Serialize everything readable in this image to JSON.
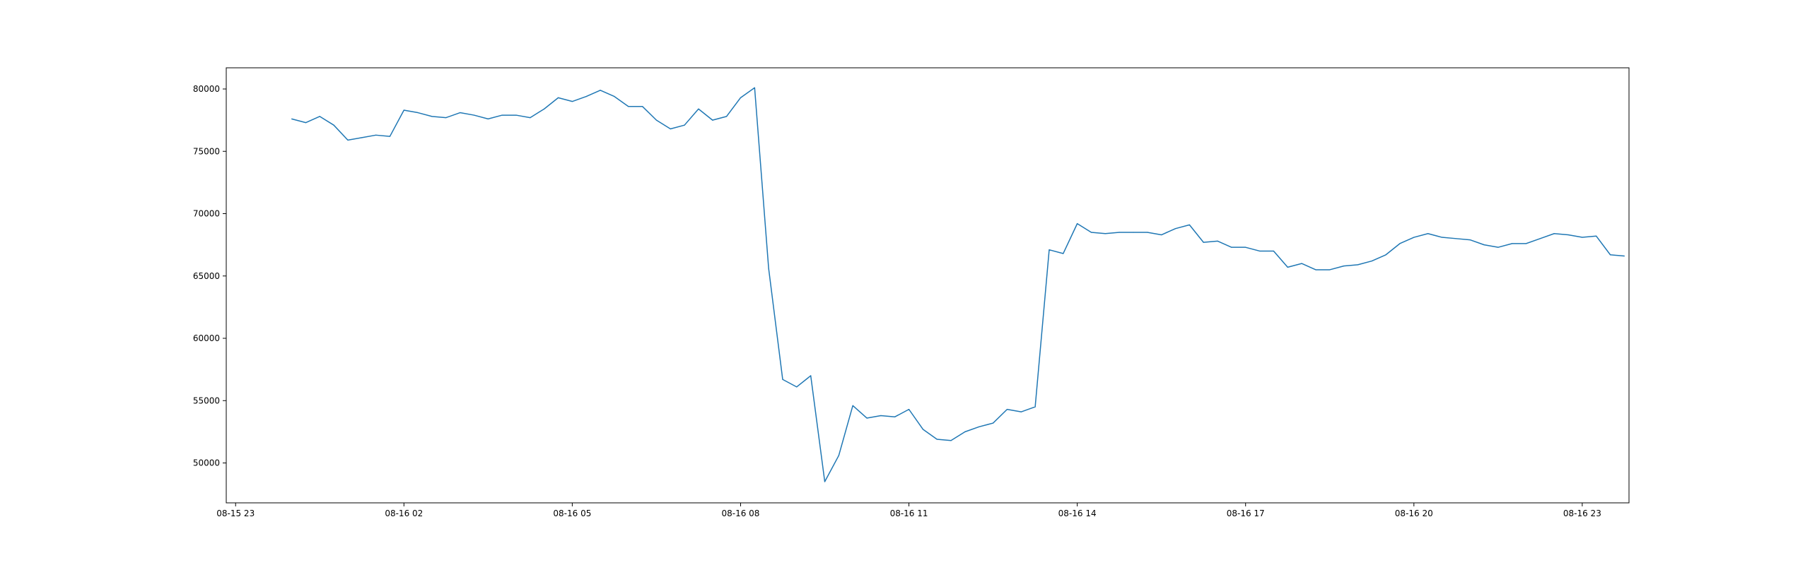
{
  "chart_data": {
    "type": "line",
    "title": "",
    "xlabel": "",
    "ylabel": "",
    "x_ticks": [
      "08-15 23",
      "08-16 02",
      "08-16 05",
      "08-16 08",
      "08-16 11",
      "08-16 14",
      "08-16 17",
      "08-16 20",
      "08-16 23"
    ],
    "y_ticks": [
      50000,
      55000,
      60000,
      65000,
      70000,
      75000,
      80000
    ],
    "xlim": [
      "08-15 22:50",
      "08-16 23:50"
    ],
    "ylim": [
      46800,
      81700
    ],
    "grid": false,
    "series": [
      {
        "color": "#1f77b4",
        "x": [
          "08-16 00:00",
          "08-16 00:15",
          "08-16 00:30",
          "08-16 00:45",
          "08-16 01:00",
          "08-16 01:15",
          "08-16 01:30",
          "08-16 01:45",
          "08-16 02:00",
          "08-16 02:15",
          "08-16 02:30",
          "08-16 02:45",
          "08-16 03:00",
          "08-16 03:15",
          "08-16 03:30",
          "08-16 03:45",
          "08-16 04:00",
          "08-16 04:15",
          "08-16 04:30",
          "08-16 04:45",
          "08-16 05:00",
          "08-16 05:15",
          "08-16 05:30",
          "08-16 05:45",
          "08-16 06:00",
          "08-16 06:15",
          "08-16 06:30",
          "08-16 06:45",
          "08-16 07:00",
          "08-16 07:15",
          "08-16 07:30",
          "08-16 07:45",
          "08-16 08:00",
          "08-16 08:15",
          "08-16 08:30",
          "08-16 08:45",
          "08-16 09:00",
          "08-16 09:15",
          "08-16 09:30",
          "08-16 09:45",
          "08-16 10:00",
          "08-16 10:15",
          "08-16 10:30",
          "08-16 10:45",
          "08-16 11:00",
          "08-16 11:15",
          "08-16 11:30",
          "08-16 11:45",
          "08-16 12:00",
          "08-16 12:15",
          "08-16 12:30",
          "08-16 12:45",
          "08-16 13:00",
          "08-16 13:15",
          "08-16 13:30",
          "08-16 13:45",
          "08-16 14:00",
          "08-16 14:15",
          "08-16 14:30",
          "08-16 14:45",
          "08-16 15:00",
          "08-16 15:15",
          "08-16 15:30",
          "08-16 15:45",
          "08-16 16:00",
          "08-16 16:15",
          "08-16 16:30",
          "08-16 16:45",
          "08-16 17:00",
          "08-16 17:15",
          "08-16 17:30",
          "08-16 17:45",
          "08-16 18:00",
          "08-16 18:15",
          "08-16 18:30",
          "08-16 18:45",
          "08-16 19:00",
          "08-16 19:15",
          "08-16 19:30",
          "08-16 19:45",
          "08-16 20:00",
          "08-16 20:15",
          "08-16 20:30",
          "08-16 20:45",
          "08-16 21:00",
          "08-16 21:15",
          "08-16 21:30",
          "08-16 21:45",
          "08-16 22:00",
          "08-16 22:15",
          "08-16 22:30",
          "08-16 22:45",
          "08-16 23:00",
          "08-16 23:15",
          "08-16 23:30",
          "08-16 23:45"
        ],
        "values": [
          77600,
          77300,
          77800,
          77100,
          75900,
          76100,
          76300,
          76200,
          78300,
          78100,
          77800,
          77700,
          78100,
          77900,
          77600,
          77900,
          77900,
          77700,
          78400,
          79300,
          79000,
          79400,
          79900,
          79400,
          78600,
          78600,
          77500,
          76800,
          77100,
          78400,
          77500,
          77800,
          79300,
          80100,
          65600,
          56700,
          56100,
          57000,
          48500,
          50600,
          54600,
          53600,
          53800,
          53700,
          54300,
          52700,
          51900,
          51800,
          52500,
          52900,
          53200,
          54300,
          54100,
          54500,
          67100,
          66800,
          69200,
          68500,
          68400,
          68500,
          68500,
          68500,
          68300,
          68800,
          69100,
          67700,
          67800,
          67300,
          67300,
          67000,
          67000,
          65700,
          66000,
          65500,
          65500,
          65800,
          65900,
          66200,
          66700,
          67600,
          68100,
          68400,
          68100,
          68000,
          67900,
          67500,
          67300,
          67600,
          67600,
          68000,
          68400,
          68300,
          68100,
          68200,
          66700,
          66600
        ]
      }
    ]
  }
}
